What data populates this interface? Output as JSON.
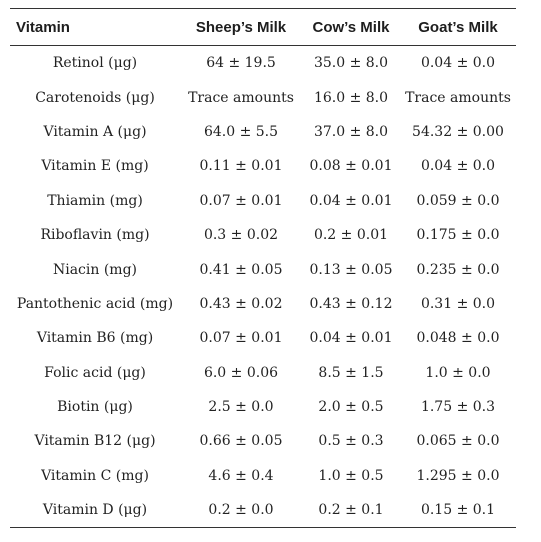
{
  "table": {
    "headers": [
      "Vitamin",
      "Sheep’s Milk",
      "Cow’s Milk",
      "Goat’s Milk"
    ],
    "rows": [
      [
        "Retinol (μg)",
        "64 ± 19.5",
        "35.0 ± 8.0",
        "0.04 ± 0.0"
      ],
      [
        "Carotenoids (μg)",
        "Trace amounts",
        "16.0 ± 8.0",
        "Trace amounts"
      ],
      [
        "Vitamin A (μg)",
        "64.0 ± 5.5",
        "37.0 ± 8.0",
        "54.32 ± 0.00"
      ],
      [
        "Vitamin E (mg)",
        "0.11 ± 0.01",
        "0.08 ± 0.01",
        "0.04 ± 0.0"
      ],
      [
        "Thiamin (mg)",
        "0.07 ± 0.01",
        "0.04 ± 0.01",
        "0.059 ± 0.0"
      ],
      [
        "Riboflavin (mg)",
        "0.3 ± 0.02",
        "0.2 ± 0.01",
        "0.175 ± 0.0"
      ],
      [
        "Niacin (mg)",
        "0.41 ± 0.05",
        "0.13 ± 0.05",
        "0.235 ± 0.0"
      ],
      [
        "Pantothenic acid (mg)",
        "0.43 ± 0.02",
        "0.43 ± 0.12",
        "0.31 ± 0.0"
      ],
      [
        "Vitamin B6 (mg)",
        "0.07 ± 0.01",
        "0.04 ± 0.01",
        "0.048 ± 0.0"
      ],
      [
        "Folic acid (μg)",
        "6.0 ± 0.06",
        "8.5 ± 1.5",
        "1.0 ± 0.0"
      ],
      [
        "Biotin (μg)",
        "2.5 ± 0.0",
        "2.0 ± 0.5",
        "1.75 ± 0.3"
      ],
      [
        "Vitamin B12 (μg)",
        "0.66 ± 0.05",
        "0.5 ± 0.3",
        "0.065 ± 0.0"
      ],
      [
        "Vitamin C (mg)",
        "4.6 ± 0.4",
        "1.0 ± 0.5",
        "1.295 ± 0.0"
      ],
      [
        "Vitamin D (μg)",
        "0.2 ± 0.0",
        "0.2 ± 0.1",
        "0.15 ± 0.1"
      ]
    ]
  }
}
